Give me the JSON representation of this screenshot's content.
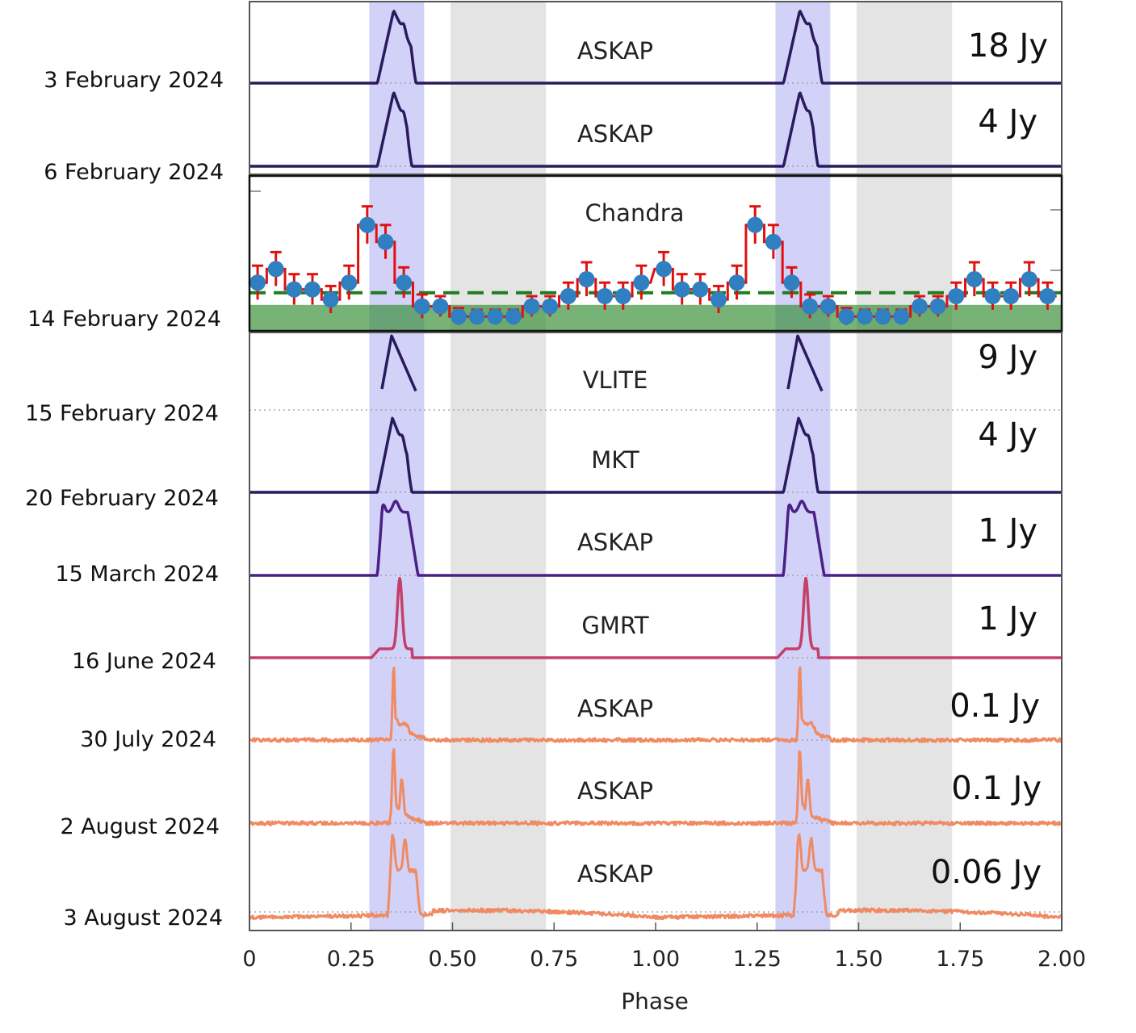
{
  "chart_data": {
    "type": "line",
    "xlabel": "Phase",
    "xlim": [
      0,
      2.0
    ],
    "x_ticks": [
      0,
      0.25,
      0.5,
      0.75,
      1.0,
      1.25,
      1.5,
      1.75,
      2.0
    ],
    "x_tick_labels": [
      "0",
      "0.25",
      "0.50",
      "0.75",
      "1.00",
      "1.25",
      "1.50",
      "1.75",
      "2.00"
    ],
    "shaded_phase_ranges": {
      "pulse_window": [
        [
          0.295,
          0.43
        ],
        [
          1.295,
          1.43
        ]
      ],
      "off_window": [
        [
          0.495,
          0.73
        ],
        [
          1.495,
          1.73
        ]
      ]
    },
    "colors": {
      "pulse_window": "#d2d2f8",
      "off_window": "#e4e4e4",
      "chandra_points": "#2f7fc1",
      "chandra_errors": "#e01010",
      "chandra_background": "#2e8b2e",
      "vlite_label": "#1f5aa8"
    },
    "panels": [
      {
        "date": "3 February 2024",
        "instrument": "ASKAP",
        "peak_flux": "18 Jy",
        "color": "#2a1a5e",
        "pulse_shape": "single",
        "pulse_phase": [
          0.315,
          0.41
        ],
        "peak_phase": 0.355
      },
      {
        "date": "6 February 2024",
        "instrument": "ASKAP",
        "peak_flux": "4 Jy",
        "color": "#2a1a5e",
        "pulse_shape": "single",
        "pulse_phase": [
          0.315,
          0.4
        ],
        "peak_phase": 0.355
      },
      {
        "date": "14 February 2024",
        "instrument": "Chandra",
        "peak_flux": "",
        "type": "xray_lightcurve",
        "phase": [
          0.02,
          0.065,
          0.11,
          0.155,
          0.2,
          0.245,
          0.29,
          0.335,
          0.38,
          0.425,
          0.47,
          0.515,
          0.56,
          0.605,
          0.65,
          0.695,
          0.74,
          0.785,
          0.83,
          0.875,
          0.92,
          0.965,
          1.02,
          1.065,
          1.11,
          1.155,
          1.2,
          1.245,
          1.29,
          1.335,
          1.38,
          1.425,
          1.47,
          1.515,
          1.56,
          1.605,
          1.65,
          1.695,
          1.74,
          1.785,
          1.83,
          1.875,
          1.92,
          1.965
        ],
        "rate": [
          0.9,
          1.3,
          0.7,
          0.7,
          0.4,
          0.9,
          2.6,
          2.1,
          0.9,
          0.2,
          0.2,
          -0.1,
          -0.1,
          -0.1,
          -0.1,
          0.2,
          0.2,
          0.5,
          1.0,
          0.5,
          0.5,
          0.9,
          1.3,
          0.7,
          0.7,
          0.4,
          0.9,
          2.6,
          2.1,
          0.9,
          0.2,
          0.2,
          -0.1,
          -0.1,
          -0.1,
          -0.1,
          0.2,
          0.2,
          0.5,
          1.0,
          0.5,
          0.5,
          1.0,
          0.5
        ],
        "error": [
          0.5,
          0.5,
          0.45,
          0.45,
          0.4,
          0.5,
          0.55,
          0.5,
          0.45,
          0.35,
          0.3,
          0.25,
          0.2,
          0.2,
          0.2,
          0.3,
          0.3,
          0.4,
          0.5,
          0.4,
          0.4,
          0.5,
          0.5,
          0.45,
          0.45,
          0.4,
          0.5,
          0.55,
          0.5,
          0.45,
          0.35,
          0.3,
          0.25,
          0.2,
          0.2,
          0.2,
          0.3,
          0.3,
          0.4,
          0.5,
          0.4,
          0.4,
          0.5,
          0.4
        ],
        "mean_level": 0.6,
        "background_level": 0.1
      },
      {
        "date": "15 February 2024",
        "instrument": "VLITE",
        "peak_flux": "9 Jy",
        "color": "#2a1a5e",
        "pulse_shape": "vlite",
        "pulse_phase": [
          0.325,
          0.41
        ],
        "peak_phase": 0.35
      },
      {
        "date": "20 February 2024",
        "instrument": "MKT",
        "peak_flux": "4 Jy",
        "color": "#2a1a5e",
        "pulse_shape": "single",
        "pulse_phase": [
          0.315,
          0.4
        ],
        "peak_phase": 0.352
      },
      {
        "date": "15 March 2024",
        "instrument": "ASKAP",
        "peak_flux": "1 Jy",
        "color": "#4a1f86",
        "pulse_shape": "plateau",
        "pulse_phase": [
          0.315,
          0.415
        ],
        "peak_phase": 0.36
      },
      {
        "date": "16 June 2024",
        "instrument": "GMRT",
        "peak_flux": "1 Jy",
        "color": "#c4406a",
        "pulse_shape": "narrow",
        "pulse_phase": [
          0.3,
          0.4
        ],
        "peak_phase": 0.37
      },
      {
        "date": "30 July 2024",
        "instrument": "ASKAP",
        "peak_flux": "0.1 Jy",
        "color": "#ef8a62",
        "pulse_shape": "decay",
        "pulse_phase": [
          0.34,
          0.43
        ],
        "peak_phase": 0.355
      },
      {
        "date": "2 August 2024",
        "instrument": "ASKAP",
        "peak_flux": "0.1 Jy",
        "color": "#ef8a62",
        "pulse_shape": "double",
        "pulse_phase": [
          0.34,
          0.43
        ],
        "peak_phase": 0.355
      },
      {
        "date": "3 August 2024",
        "instrument": "ASKAP",
        "peak_flux": "0.06 Jy",
        "color": "#ef8a62",
        "pulse_shape": "wide_double",
        "pulse_phase": [
          0.34,
          0.42
        ],
        "peak_phase": 0.365
      }
    ]
  }
}
